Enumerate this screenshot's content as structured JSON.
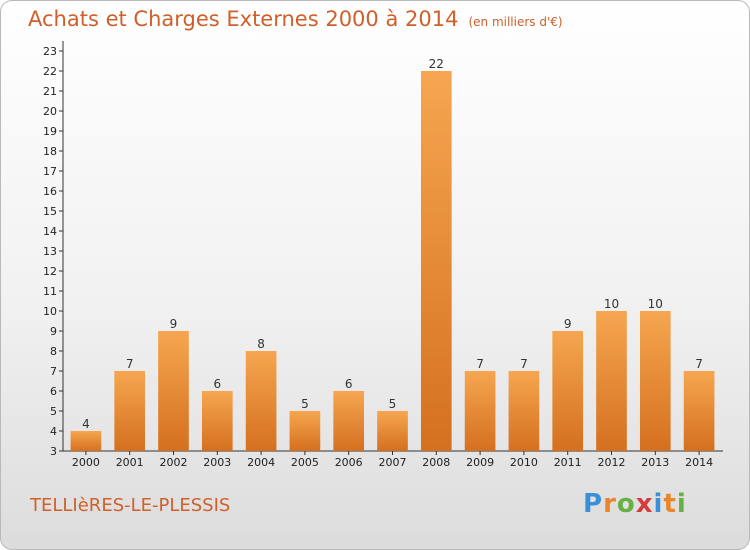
{
  "chart_data": {
    "type": "bar",
    "title": "Achats et Charges Externes 2000 à 2014",
    "subtitle": "(en milliers d'€)",
    "xlabel": "",
    "ylabel": "",
    "categories": [
      "2000",
      "2001",
      "2002",
      "2003",
      "2004",
      "2005",
      "2006",
      "2007",
      "2008",
      "2009",
      "2010",
      "2011",
      "2012",
      "2013",
      "2014"
    ],
    "values": [
      4,
      7,
      9,
      6,
      8,
      5,
      6,
      5,
      22,
      7,
      7,
      9,
      10,
      10,
      7
    ],
    "ylim": [
      3,
      23
    ],
    "yticks": [
      3,
      4,
      5,
      6,
      7,
      8,
      9,
      10,
      11,
      12,
      13,
      14,
      15,
      16,
      17,
      18,
      19,
      20,
      21,
      22,
      23
    ],
    "grid": false,
    "bar_color": "#f29b3b",
    "bar_dark": "#d4701f"
  },
  "footer": {
    "commune": "TELLIèRES-LE-PLESSIS",
    "logo_letters": [
      "P",
      "r",
      "o",
      "x",
      "i",
      "t",
      "i"
    ],
    "logo_colors": [
      "#3b8fd6",
      "#e9862b",
      "#67b043",
      "#d63c3c",
      "#3b8fd6",
      "#e9862b",
      "#67b043"
    ]
  },
  "colors": {
    "title": "#d05f2a",
    "axis": "#333333"
  }
}
